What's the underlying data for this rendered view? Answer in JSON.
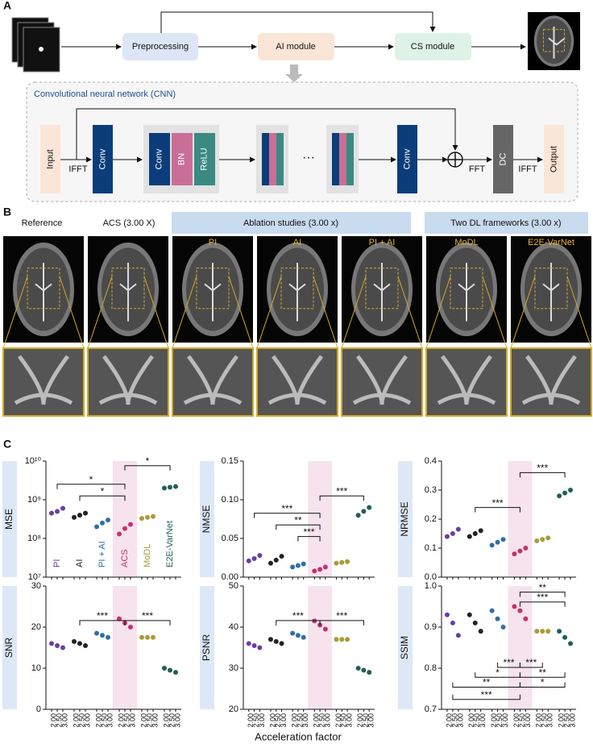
{
  "panel_a": {
    "label": "A",
    "preprocessing": "Preprocessing",
    "ai_module": "AI module",
    "cs_module": "CS module",
    "cnn": {
      "title": "Convolutional neural network (CNN)",
      "blocks": [
        "Input",
        "Conv",
        "Conv",
        "BN",
        "ReLU",
        "···",
        "Conv",
        "DC",
        "Output"
      ],
      "ops": [
        "IFFT",
        "FFT",
        "IFFT"
      ]
    }
  },
  "panel_b": {
    "label": "B",
    "columns": [
      "Reference",
      "ACS (3.00 X)"
    ],
    "groups": [
      "Ablation studies (3.00 x)",
      "Two DL frameworks (3.00 x)"
    ],
    "methods": [
      "PI",
      "AI",
      "PI + AI",
      "MoDL",
      "E2E-VarNet"
    ]
  },
  "panel_c": {
    "label": "C",
    "xlabel": "Acceleration factor"
  },
  "chart_data": [
    {
      "type": "dot",
      "ylabel": "MSE",
      "log": true,
      "ylim": [
        10000000,
        10000000000
      ],
      "yticks": [
        {
          "value": 10000000,
          "label": "10⁷"
        },
        {
          "value": 100000000,
          "label": "10⁸"
        },
        {
          "value": 1000000000,
          "label": "10⁹"
        },
        {
          "value": 10000000000,
          "label": "10¹⁰"
        }
      ],
      "series": [
        {
          "name": "PI",
          "color": "#6a3fa0",
          "values": [
            450000000,
            500000000,
            600000000,
            null,
            null,
            null,
            null,
            null,
            null,
            null,
            null,
            null,
            null,
            null,
            null,
            null,
            null,
            null
          ]
        },
        {
          "name": "AI",
          "color": "#222222",
          "values": [
            null,
            null,
            null,
            350000000,
            400000000,
            450000000,
            null,
            null,
            null,
            null,
            null,
            null,
            null,
            null,
            null,
            null,
            null,
            null
          ]
        },
        {
          "name": "PI + AI",
          "color": "#2f6fa8",
          "values": [
            null,
            null,
            null,
            null,
            null,
            null,
            200000000,
            250000000,
            300000000,
            null,
            null,
            null,
            null,
            null,
            null,
            null,
            null,
            null
          ]
        },
        {
          "name": "ACS",
          "color": "#c2336d",
          "values": [
            null,
            null,
            null,
            null,
            null,
            null,
            null,
            null,
            null,
            130000000,
            180000000,
            230000000,
            null,
            null,
            null,
            null,
            null,
            null
          ]
        },
        {
          "name": "MoDL",
          "color": "#a99a3a",
          "values": [
            null,
            null,
            null,
            null,
            null,
            null,
            null,
            null,
            null,
            null,
            null,
            null,
            330000000,
            350000000,
            370000000,
            null,
            null,
            null
          ]
        },
        {
          "name": "E2E-VarNet",
          "color": "#1f5f57",
          "values": [
            null,
            null,
            null,
            null,
            null,
            null,
            null,
            null,
            null,
            null,
            null,
            null,
            null,
            null,
            null,
            2000000000,
            2100000000,
            2200000000
          ]
        }
      ],
      "annotations": [
        "*",
        "*",
        "*"
      ]
    },
    {
      "type": "dot",
      "ylabel": "NMSE",
      "ylim": [
        0,
        0.15
      ],
      "yticks": [
        {
          "value": 0,
          "label": "0.00"
        },
        {
          "value": 0.05,
          "label": "0.05"
        },
        {
          "value": 0.1,
          "label": "0.10"
        },
        {
          "value": 0.15,
          "label": "0.15"
        }
      ],
      "series": [
        {
          "color": "#6a3fa0",
          "values": [
            0.021,
            0.024,
            0.028,
            null,
            null,
            null,
            null,
            null,
            null,
            null,
            null,
            null,
            null,
            null,
            null,
            null,
            null,
            null
          ]
        },
        {
          "color": "#222222",
          "values": [
            null,
            null,
            null,
            0.018,
            0.022,
            0.027,
            null,
            null,
            null,
            null,
            null,
            null,
            null,
            null,
            null,
            null,
            null,
            null
          ]
        },
        {
          "color": "#2f6fa8",
          "values": [
            null,
            null,
            null,
            null,
            null,
            null,
            0.013,
            0.015,
            0.017,
            null,
            null,
            null,
            null,
            null,
            null,
            null,
            null,
            null
          ]
        },
        {
          "color": "#c2336d",
          "values": [
            null,
            null,
            null,
            null,
            null,
            null,
            null,
            null,
            null,
            0.008,
            0.01,
            0.013,
            null,
            null,
            null,
            null,
            null,
            null
          ]
        },
        {
          "color": "#a99a3a",
          "values": [
            null,
            null,
            null,
            null,
            null,
            null,
            null,
            null,
            null,
            null,
            null,
            null,
            0.018,
            0.019,
            0.02,
            null,
            null,
            null
          ]
        },
        {
          "color": "#1f5f57",
          "values": [
            null,
            null,
            null,
            null,
            null,
            null,
            null,
            null,
            null,
            null,
            null,
            null,
            null,
            null,
            null,
            0.08,
            0.085,
            0.09
          ]
        }
      ],
      "annotations": [
        "***",
        "***",
        "**",
        "***"
      ]
    },
    {
      "type": "dot",
      "ylabel": "NRMSE",
      "ylim": [
        0,
        0.4
      ],
      "yticks": [
        {
          "value": 0,
          "label": "0.0"
        },
        0.1,
        0.2,
        0.3,
        0.4
      ],
      "series": [
        {
          "color": "#6a3fa0",
          "values": [
            0.14,
            0.15,
            0.165,
            null,
            null,
            null,
            null,
            null,
            null,
            null,
            null,
            null,
            null,
            null,
            null,
            null,
            null,
            null
          ]
        },
        {
          "color": "#222222",
          "values": [
            null,
            null,
            null,
            0.14,
            0.15,
            0.16,
            null,
            null,
            null,
            null,
            null,
            null,
            null,
            null,
            null,
            null,
            null,
            null
          ]
        },
        {
          "color": "#2f6fa8",
          "values": [
            null,
            null,
            null,
            null,
            null,
            null,
            0.11,
            0.12,
            0.13,
            null,
            null,
            null,
            null,
            null,
            null,
            null,
            null,
            null
          ]
        },
        {
          "color": "#c2336d",
          "values": [
            null,
            null,
            null,
            null,
            null,
            null,
            null,
            null,
            null,
            0.08,
            0.09,
            0.1,
            null,
            null,
            null,
            null,
            null,
            null
          ]
        },
        {
          "color": "#a99a3a",
          "values": [
            null,
            null,
            null,
            null,
            null,
            null,
            null,
            null,
            null,
            null,
            null,
            null,
            0.125,
            0.13,
            0.135,
            null,
            null,
            null
          ]
        },
        {
          "color": "#1f5f57",
          "values": [
            null,
            null,
            null,
            null,
            null,
            null,
            null,
            null,
            null,
            null,
            null,
            null,
            null,
            null,
            null,
            0.28,
            0.29,
            0.3
          ]
        }
      ],
      "annotations": [
        "***",
        "***"
      ]
    },
    {
      "type": "dot",
      "ylabel": "SNR",
      "ylim": [
        0,
        30
      ],
      "yticks": [
        0,
        10,
        20,
        30
      ],
      "categories": [
        "2.00",
        "2.50",
        "3.00",
        "2.00",
        "2.50",
        "3.00",
        "2.00",
        "2.50",
        "3.00",
        "2.00",
        "2.50",
        "3.00",
        "2.00",
        "2.50",
        "3.00",
        "2.00",
        "2.50",
        "3.00"
      ],
      "series": [
        {
          "color": "#6a3fa0",
          "values": [
            16,
            15.5,
            15,
            null,
            null,
            null,
            null,
            null,
            null,
            null,
            null,
            null,
            null,
            null,
            null,
            null,
            null,
            null
          ]
        },
        {
          "color": "#222222",
          "values": [
            null,
            null,
            null,
            16.5,
            16,
            15.5,
            null,
            null,
            null,
            null,
            null,
            null,
            null,
            null,
            null,
            null,
            null,
            null
          ]
        },
        {
          "color": "#2f6fa8",
          "values": [
            null,
            null,
            null,
            null,
            null,
            null,
            18.5,
            18,
            17.5,
            null,
            null,
            null,
            null,
            null,
            null,
            null,
            null,
            null
          ]
        },
        {
          "color": "#c2336d",
          "values": [
            null,
            null,
            null,
            null,
            null,
            null,
            null,
            null,
            null,
            22,
            21,
            20,
            null,
            null,
            null,
            null,
            null,
            null
          ]
        },
        {
          "color": "#a99a3a",
          "values": [
            null,
            null,
            null,
            null,
            null,
            null,
            null,
            null,
            null,
            null,
            null,
            null,
            17.5,
            17.5,
            17.5,
            null,
            null,
            null
          ]
        },
        {
          "color": "#1f5f57",
          "values": [
            null,
            null,
            null,
            null,
            null,
            null,
            null,
            null,
            null,
            null,
            null,
            null,
            null,
            null,
            null,
            10,
            9.5,
            9
          ]
        }
      ],
      "annotations": [
        "***",
        "***"
      ]
    },
    {
      "type": "dot",
      "ylabel": "PSNR",
      "ylim": [
        20,
        50
      ],
      "yticks": [
        20,
        30,
        40,
        50
      ],
      "categories": [
        "2.00",
        "2.50",
        "3.00",
        "2.00",
        "2.50",
        "3.00",
        "2.00",
        "2.50",
        "3.00",
        "2.00",
        "2.50",
        "3.00",
        "2.00",
        "2.50",
        "3.00",
        "2.00",
        "2.50",
        "3.00"
      ],
      "series": [
        {
          "color": "#6a3fa0",
          "values": [
            36,
            35.5,
            35,
            null,
            null,
            null,
            null,
            null,
            null,
            null,
            null,
            null,
            null,
            null,
            null,
            null,
            null,
            null
          ]
        },
        {
          "color": "#222222",
          "values": [
            null,
            null,
            null,
            37,
            36.5,
            36,
            null,
            null,
            null,
            null,
            null,
            null,
            null,
            null,
            null,
            null,
            null,
            null
          ]
        },
        {
          "color": "#2f6fa8",
          "values": [
            null,
            null,
            null,
            null,
            null,
            null,
            38.5,
            38,
            37.5,
            null,
            null,
            null,
            null,
            null,
            null,
            null,
            null,
            null
          ]
        },
        {
          "color": "#c2336d",
          "values": [
            null,
            null,
            null,
            null,
            null,
            null,
            null,
            null,
            null,
            41.5,
            40.5,
            39.5,
            null,
            null,
            null,
            null,
            null,
            null
          ]
        },
        {
          "color": "#a99a3a",
          "values": [
            null,
            null,
            null,
            null,
            null,
            null,
            null,
            null,
            null,
            null,
            null,
            null,
            37,
            37,
            37,
            null,
            null,
            null
          ]
        },
        {
          "color": "#1f5f57",
          "values": [
            null,
            null,
            null,
            null,
            null,
            null,
            null,
            null,
            null,
            null,
            null,
            null,
            null,
            null,
            null,
            30,
            29.5,
            29
          ]
        }
      ],
      "annotations": [
        "***",
        "***"
      ]
    },
    {
      "type": "dot",
      "ylabel": "SSIM",
      "ylim": [
        0.7,
        1.0
      ],
      "yticks": [
        0.7,
        0.8,
        0.9,
        {
          "value": 1.0,
          "label": "1.0"
        }
      ],
      "categories": [
        "2.00",
        "2.50",
        "3.00",
        "2.00",
        "2.50",
        "3.00",
        "2.00",
        "2.50",
        "3.00",
        "2.00",
        "2.50",
        "3.00",
        "2.00",
        "2.50",
        "3.00",
        "2.00",
        "2.50",
        "3.00"
      ],
      "series": [
        {
          "color": "#6a3fa0",
          "values": [
            0.93,
            0.91,
            0.88,
            null,
            null,
            null,
            null,
            null,
            null,
            null,
            null,
            null,
            null,
            null,
            null,
            null,
            null,
            null
          ]
        },
        {
          "color": "#222222",
          "values": [
            null,
            null,
            null,
            0.93,
            0.91,
            0.89,
            null,
            null,
            null,
            null,
            null,
            null,
            null,
            null,
            null,
            null,
            null,
            null
          ]
        },
        {
          "color": "#2f6fa8",
          "values": [
            null,
            null,
            null,
            null,
            null,
            null,
            0.94,
            0.92,
            0.9,
            null,
            null,
            null,
            null,
            null,
            null,
            null,
            null,
            null
          ]
        },
        {
          "color": "#c2336d",
          "values": [
            null,
            null,
            null,
            null,
            null,
            null,
            null,
            null,
            null,
            0.95,
            0.94,
            0.92,
            null,
            null,
            null,
            null,
            null,
            null
          ]
        },
        {
          "color": "#a99a3a",
          "values": [
            null,
            null,
            null,
            null,
            null,
            null,
            null,
            null,
            null,
            null,
            null,
            null,
            0.89,
            0.89,
            0.89,
            null,
            null,
            null
          ]
        },
        {
          "color": "#1f5f57",
          "values": [
            null,
            null,
            null,
            null,
            null,
            null,
            null,
            null,
            null,
            null,
            null,
            null,
            null,
            null,
            null,
            0.89,
            0.875,
            0.86
          ]
        }
      ],
      "annotations": [
        "**",
        "***",
        "***",
        "***",
        "*",
        "**",
        "**",
        "*",
        "***"
      ]
    }
  ]
}
